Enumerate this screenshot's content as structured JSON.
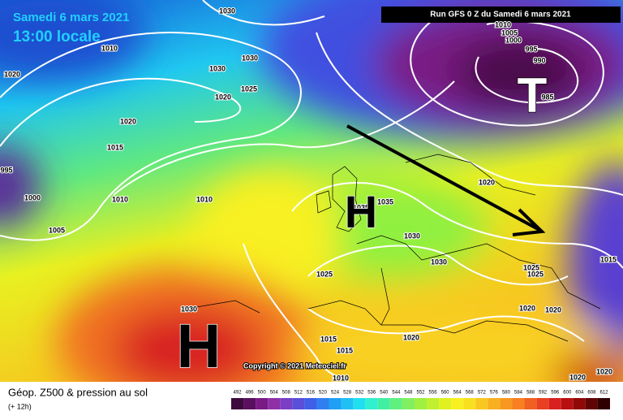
{
  "header": {
    "date": "Samedi 6 mars 2021",
    "time": "13:00 locale",
    "run": "Run GFS 0 Z du Samedi 6 mars 2021"
  },
  "map": {
    "pressure_centers": [
      "H",
      "H",
      "T"
    ],
    "isobar_labels": [
      "1030",
      "1010",
      "1020",
      "1030",
      "1030",
      "1025",
      "1020",
      "1020",
      "1015",
      "995",
      "1000",
      "1005",
      "1010",
      "1010",
      "1035",
      "1035",
      "1030",
      "1030",
      "1025",
      "1020",
      "1025",
      "1025",
      "1015",
      "1020",
      "1020",
      "1020",
      "1015",
      "1015",
      "1010",
      "1030",
      "1020",
      "1020",
      "1010",
      "1005",
      "1000",
      "995",
      "990",
      "985"
    ],
    "copyright": "Copyright © 2021 Meteociel.fr"
  },
  "footer": {
    "title": "Géop. Z500 & pression au sol",
    "lead": "(+ 12h)"
  },
  "colorbar": {
    "labels": [
      492,
      496,
      500,
      504,
      508,
      512,
      516,
      520,
      524,
      528,
      532,
      536,
      540,
      544,
      548,
      552,
      556,
      560,
      564,
      568,
      572,
      576,
      580,
      584,
      588,
      592,
      596,
      600,
      604,
      608,
      612
    ],
    "colors": [
      "#3d0a3d",
      "#5a0f5f",
      "#7a1a85",
      "#8f2fa8",
      "#7a3fc4",
      "#5a4fd8",
      "#3f5fe8",
      "#2f7ff0",
      "#1f9ff5",
      "#20c0f5",
      "#20e0f0",
      "#30f0d0",
      "#40f0a0",
      "#60f080",
      "#80f060",
      "#a0f040",
      "#c0f030",
      "#e0f020",
      "#f8f020",
      "#f8e020",
      "#f8c820",
      "#f8b020",
      "#f89820",
      "#f88020",
      "#f06020",
      "#e84020",
      "#d82020",
      "#b81010",
      "#900808",
      "#600404",
      "#300000"
    ]
  }
}
